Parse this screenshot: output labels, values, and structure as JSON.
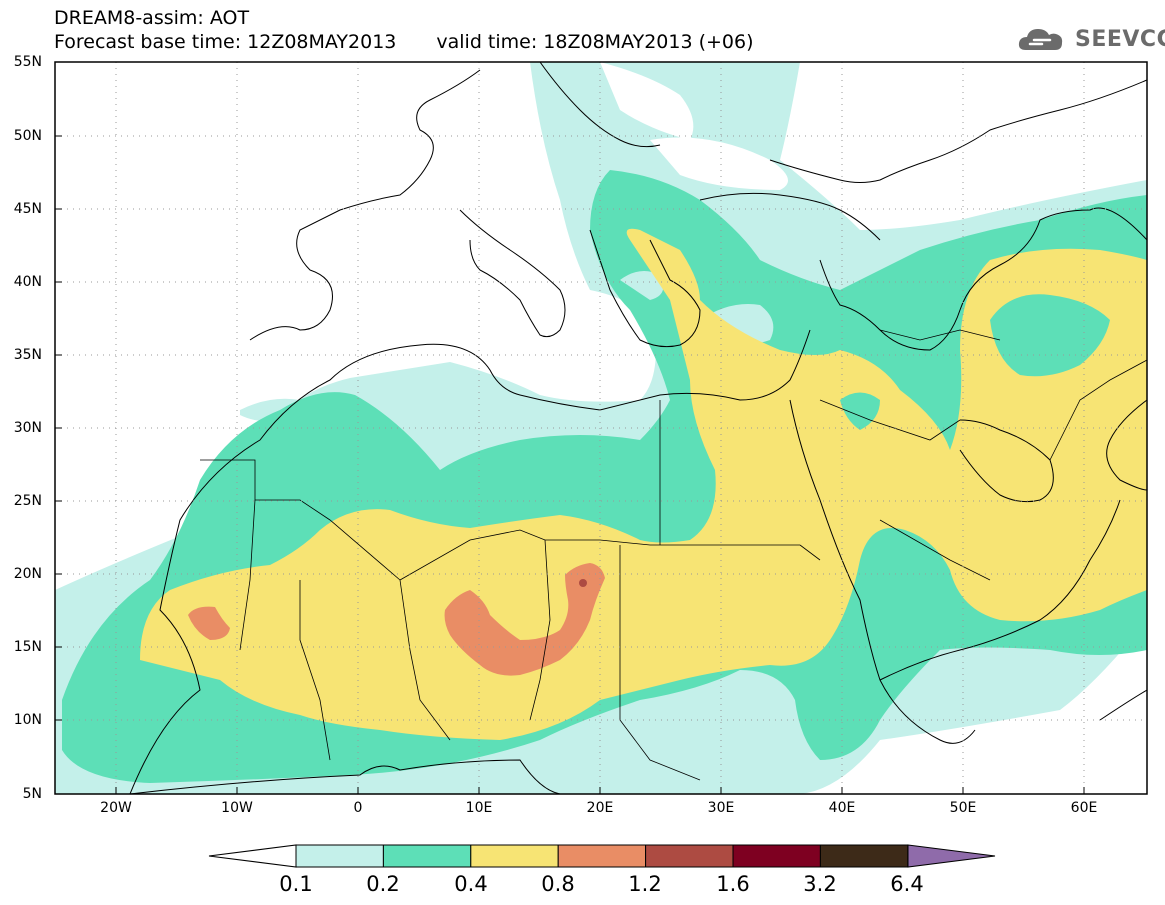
{
  "header": {
    "title": "DREAM8-assim: AOT",
    "base_time": "Forecast base time: 12Z08MAY2013",
    "valid_time": "valid time: 18Z08MAY2013 (+06)"
  },
  "logo": {
    "text": "SEEVCCC",
    "icon": "cloud-icon"
  },
  "axes": {
    "lat_labels": [
      "55N",
      "50N",
      "45N",
      "40N",
      "35N",
      "30N",
      "25N",
      "20N",
      "15N",
      "10N",
      "5N"
    ],
    "lon_labels": [
      "20W",
      "10W",
      "0",
      "10E",
      "20E",
      "30E",
      "40E",
      "50E",
      "60E"
    ]
  },
  "colorbar": {
    "labels": [
      "0.1",
      "0.2",
      "0.4",
      "0.8",
      "1.2",
      "1.6",
      "3.2",
      "6.4"
    ],
    "colors": [
      "#c4f0ea",
      "#5ddfb7",
      "#f7e474",
      "#e98d65",
      "#ad4b42",
      "#7e0021",
      "#3d2a18",
      "#8f6baa"
    ]
  },
  "colors": {
    "aot_01_02": "#c4f0ea",
    "aot_02_04": "#5ddfb7",
    "aot_04_08": "#f7e474",
    "aot_08_12": "#e98d65",
    "aot_12_16": "#ad4b42"
  }
}
